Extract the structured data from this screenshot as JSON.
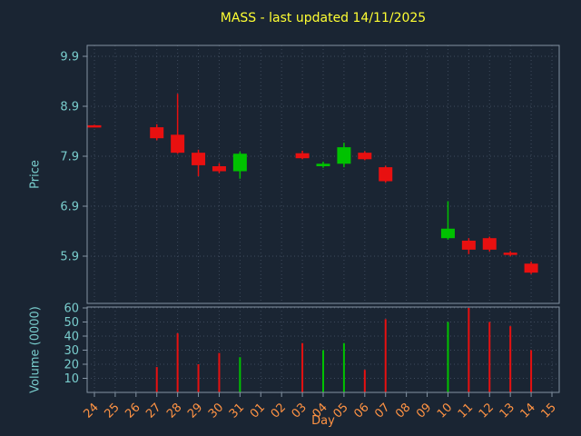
{
  "header": {
    "title": "MASS - last updated 14/11/2025"
  },
  "axes": {
    "price_label": "Price",
    "volume_label": "Volume (0000)",
    "day_label": "Day"
  },
  "colors": {
    "background": "#1a2533",
    "up": "#00c200",
    "down": "#e81010",
    "title": "#ffff33",
    "price_axis_text": "#79cdcd",
    "day_axis_text": "#ff9344",
    "grid": "#3e4a5c",
    "border": "#8493a3"
  },
  "chart_data": {
    "type": "candlestick",
    "title": "MASS - last updated 14/11/2025",
    "xlabel": "Day",
    "ylabel": "Price",
    "y2label": "Volume (0000)",
    "grid": true,
    "x_categories": [
      "24",
      "25",
      "26",
      "27",
      "28",
      "29",
      "30",
      "31",
      "01",
      "02",
      "03",
      "04",
      "05",
      "06",
      "07",
      "08",
      "09",
      "10",
      "11",
      "12",
      "13",
      "14",
      "15"
    ],
    "price_ticks": [
      "9.9",
      "8.9",
      "7.9",
      "6.9",
      "5.9"
    ],
    "price_axis_range": [
      4.95,
      10.12
    ],
    "volume_ticks": [
      "60",
      "50",
      "40",
      "30",
      "20",
      "10"
    ],
    "volume_axis_range": [
      0,
      61
    ],
    "candles": [
      {
        "day": "24",
        "open": 8.52,
        "high": 8.53,
        "low": 8.49,
        "close": 8.5,
        "volume": 0,
        "direction": "down"
      },
      {
        "day": "27",
        "open": 8.48,
        "high": 8.54,
        "low": 8.22,
        "close": 8.26,
        "volume": 18,
        "direction": "down"
      },
      {
        "day": "28",
        "open": 8.33,
        "high": 9.15,
        "low": 7.95,
        "close": 7.97,
        "volume": 42,
        "direction": "down"
      },
      {
        "day": "29",
        "open": 7.97,
        "high": 8.03,
        "low": 7.5,
        "close": 7.72,
        "volume": 20,
        "direction": "down"
      },
      {
        "day": "30",
        "open": 7.7,
        "high": 7.76,
        "low": 7.56,
        "close": 7.6,
        "volume": 28,
        "direction": "down"
      },
      {
        "day": "31",
        "open": 7.6,
        "high": 7.99,
        "low": 7.45,
        "close": 7.95,
        "volume": 25,
        "direction": "up"
      },
      {
        "day": "03",
        "open": 7.96,
        "high": 8.01,
        "low": 7.84,
        "close": 7.86,
        "volume": 35,
        "direction": "down"
      },
      {
        "day": "04",
        "open": 7.7,
        "high": 7.79,
        "low": 7.67,
        "close": 7.75,
        "volume": 30,
        "direction": "up"
      },
      {
        "day": "05",
        "open": 7.75,
        "high": 8.17,
        "low": 7.68,
        "close": 8.08,
        "volume": 35,
        "direction": "up"
      },
      {
        "day": "06",
        "open": 7.97,
        "high": 8.0,
        "low": 7.82,
        "close": 7.84,
        "volume": 16,
        "direction": "down"
      },
      {
        "day": "07",
        "open": 7.68,
        "high": 7.71,
        "low": 7.37,
        "close": 7.4,
        "volume": 52,
        "direction": "down"
      },
      {
        "day": "10",
        "open": 6.26,
        "high": 7.0,
        "low": 6.23,
        "close": 6.45,
        "volume": 50,
        "direction": "up"
      },
      {
        "day": "11",
        "open": 6.21,
        "high": 6.26,
        "low": 5.94,
        "close": 6.03,
        "volume": 60,
        "direction": "down"
      },
      {
        "day": "12",
        "open": 6.26,
        "high": 6.29,
        "low": 5.99,
        "close": 6.03,
        "volume": 50,
        "direction": "down"
      },
      {
        "day": "13",
        "open": 5.97,
        "high": 6.0,
        "low": 5.9,
        "close": 5.93,
        "volume": 47,
        "direction": "down"
      },
      {
        "day": "14",
        "open": 5.75,
        "high": 5.79,
        "low": 5.54,
        "close": 5.57,
        "volume": 30,
        "direction": "down"
      }
    ]
  }
}
